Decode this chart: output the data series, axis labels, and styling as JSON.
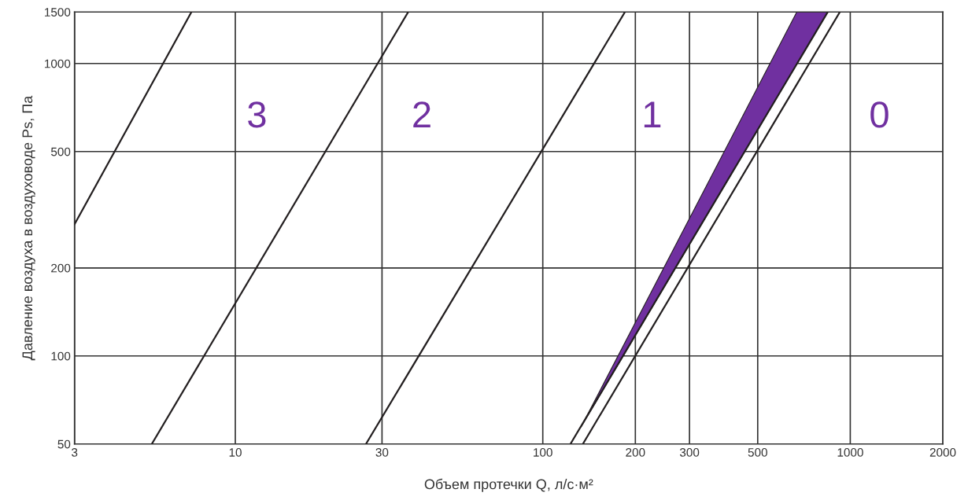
{
  "chart_data": {
    "type": "line",
    "xlabel": "Объем протечки Q, л/с·м²",
    "ylabel": "Давление воздуха в воздуховоде Ps, Па",
    "log": "xy",
    "grid": true,
    "legend": false,
    "marker": "none",
    "line_style": "solid",
    "xlim": [
      3,
      2000
    ],
    "xticks": [
      3,
      10,
      30,
      100,
      200,
      300,
      500,
      1000,
      2000
    ],
    "ylim": [
      50,
      1500
    ],
    "yticks": [
      50,
      100,
      200,
      500,
      1000,
      1500
    ],
    "series": [
      {
        "color": "#231f20",
        "x": [
          3,
          7.2
        ],
        "values": [
          282,
          1500
        ]
      },
      {
        "color": "#231f20",
        "x": [
          5.35,
          36.5
        ],
        "values": [
          50,
          1500
        ]
      },
      {
        "color": "#231f20",
        "x": [
          26.6,
          185
        ],
        "values": [
          50,
          1500
        ]
      },
      {
        "color": "#231f20",
        "x": [
          123,
          845
        ],
        "values": [
          50,
          1500
        ]
      },
      {
        "color": "#231f20",
        "x": [
          135,
          925
        ],
        "values": [
          50,
          1500
        ]
      },
      {
        "type": "area",
        "color": "#7030a0",
        "x": [
          133,
          670,
          845
        ],
        "values": [
          57,
          1500,
          1500
        ]
      }
    ],
    "annotations": [
      "3",
      "2",
      "1",
      "0"
    ]
  }
}
